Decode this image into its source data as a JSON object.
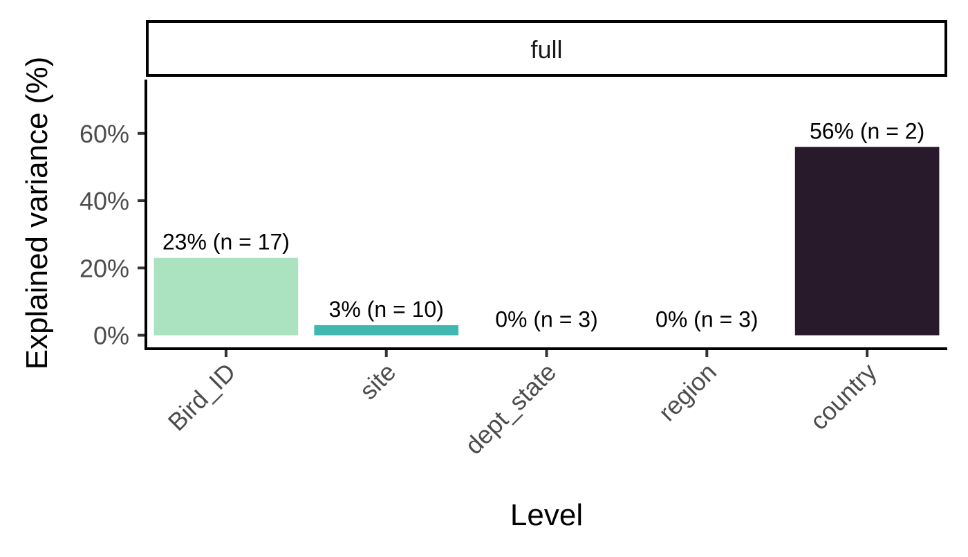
{
  "chart_data": {
    "type": "bar",
    "facet_label": "full",
    "categories": [
      "Bird_ID",
      "site",
      "dept_state",
      "region",
      "country"
    ],
    "values": [
      23,
      3,
      0,
      0,
      56
    ],
    "data_labels": [
      "23% (n = 17)",
      "3% (n = 10)",
      "0% (n = 3)",
      "0% (n = 3)",
      "56% (n = 2)"
    ],
    "colors": [
      "#abe2bf",
      "#40b7b1",
      "#5c9eb1",
      "#3d5a8c",
      "#281a2b"
    ],
    "xlabel": "Level",
    "ylabel": "Explained variance (%)",
    "y_ticks": [
      0,
      20,
      40,
      60
    ],
    "y_tick_labels": [
      "0%",
      "20%",
      "40%",
      "60%"
    ],
    "ylim": [
      -4,
      76
    ],
    "grid": false,
    "legend": "none"
  }
}
